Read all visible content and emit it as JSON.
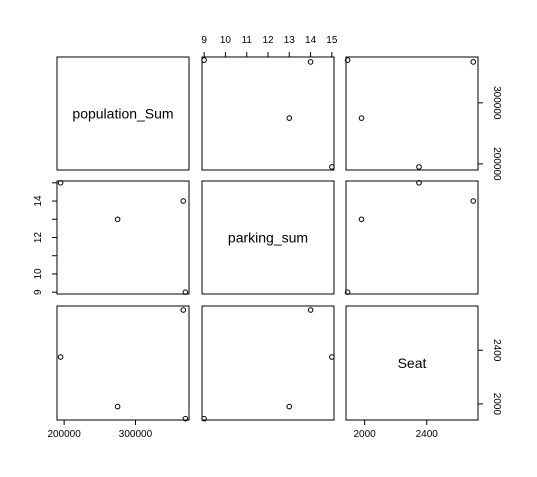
{
  "chart_data": {
    "type": "scatter",
    "variables": [
      {
        "name": "population_Sum",
        "axis_ticks": [
          "200000",
          "300000"
        ],
        "lim": [
          190000,
          375000
        ]
      },
      {
        "name": "parking_sum",
        "axis_ticks": [
          "9",
          "10",
          "11",
          "12",
          "13",
          "14",
          "15"
        ],
        "lim": [
          8.9,
          15.1
        ]
      },
      {
        "name": "Seat",
        "axis_ticks": [
          "2000",
          "2400"
        ],
        "lim": [
          1880,
          2730
        ]
      }
    ],
    "bottom_axis_ticks": [
      "200000",
      "300000",
      "2000",
      "2400"
    ],
    "left_axis_ticks": [
      "9",
      "10",
      "12",
      "14"
    ],
    "right_axis_ticks": [
      "200000",
      "300000",
      "2000",
      "2400"
    ],
    "observations": [
      {
        "population_Sum": 367000,
        "parking_sum": 14,
        "Seat": 2700
      },
      {
        "population_Sum": 195000,
        "parking_sum": 15,
        "Seat": 2350
      },
      {
        "population_Sum": 275000,
        "parking_sum": 13,
        "Seat": 1980
      },
      {
        "population_Sum": 370000,
        "parking_sum": 9,
        "Seat": 1890
      }
    ]
  }
}
